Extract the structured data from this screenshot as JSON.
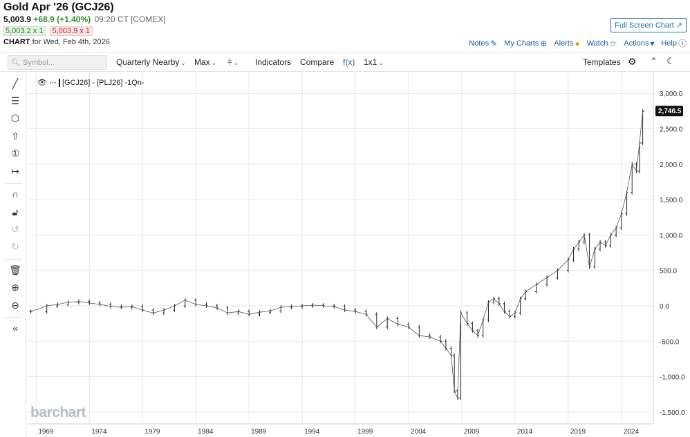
{
  "header": {
    "title": "Gold Apr '26 (GCJ26)",
    "last": "5,003.9",
    "change": "+68.9 (+1.40%)",
    "time": "09:20 CT [COMEX]",
    "bid": "5,003.2 x 1",
    "ask": "5,003.9 x 1",
    "chart_label": "CHART",
    "chart_for": "for Wed, Feb 4th, 2026",
    "full_screen": "Full Screen Chart"
  },
  "top_links": {
    "notes": "Notes",
    "my_charts": "My Charts",
    "alerts": "Alerts",
    "watch": "Watch",
    "actions": "Actions",
    "help": "Help"
  },
  "toolbar": {
    "search_placeholder": "Symbol...",
    "period": "Quarterly Nearby",
    "range": "Max",
    "indicators": "Indicators",
    "compare": "Compare",
    "fx": "f(x)",
    "layout": "1x1",
    "templates": "Templates"
  },
  "side_tools": [
    "line-tool-icon",
    "fib-tool-icon",
    "shape-tool-icon",
    "arrow-tool-icon",
    "number-tool-icon",
    "measure-tool-icon",
    "magnet-icon",
    "lock-icon",
    "undo-icon",
    "redo-icon",
    "trash-icon",
    "zoom-in-icon",
    "zoom-out-icon",
    "collapse-icon"
  ],
  "legend": "[GCJ26] - [PLJ26] -1Qn-",
  "watermark": "barchart",
  "colors": {
    "accent": "#1b6fb5",
    "up": "#2f8b2f",
    "down": "#b03030",
    "last_label_bg": "#111111"
  },
  "chart_data": {
    "type": "line",
    "title": "",
    "xlabel": "",
    "ylabel": "",
    "series": [
      {
        "name": "[GCJ26] - [PLJ26]",
        "x": [
          1968.5,
          1970,
          1971,
          1972,
          1973,
          1974,
          1975,
          1976,
          1977,
          1978,
          1979,
          1980,
          1981,
          1982,
          1983,
          1984,
          1985,
          1986,
          1987,
          1988,
          1989,
          1990,
          1991,
          1992,
          1993,
          1994,
          1995,
          1996,
          1997,
          1998,
          1999,
          2000,
          2001,
          2002,
          2003,
          2004,
          2005,
          2006,
          2007,
          2007.5,
          2008,
          2008.3,
          2008.6,
          2008.9,
          2009.5,
          2010,
          2010.5,
          2011,
          2011.5,
          2012,
          2012.5,
          2013,
          2013.5,
          2014,
          2014.5,
          2015,
          2016,
          2017,
          2018,
          2019,
          2019.5,
          2020,
          2020.5,
          2021,
          2021.5,
          2022,
          2022.5,
          2023,
          2023.5,
          2024,
          2024.5,
          2025,
          2025.4,
          2025.7,
          2026
        ],
        "y": [
          -80,
          0,
          20,
          50,
          60,
          40,
          20,
          -10,
          -20,
          -10,
          -60,
          -100,
          -60,
          0,
          80,
          20,
          0,
          -30,
          -100,
          -80,
          -120,
          -90,
          -70,
          -20,
          -10,
          0,
          10,
          0,
          -10,
          -60,
          -80,
          -120,
          -300,
          -180,
          -260,
          -300,
          -420,
          -440,
          -500,
          -600,
          -700,
          -1200,
          -1300,
          -100,
          -250,
          -350,
          -420,
          -200,
          50,
          100,
          30,
          -80,
          -150,
          -100,
          100,
          200,
          300,
          400,
          500,
          650,
          800,
          900,
          1000,
          550,
          800,
          900,
          850,
          1000,
          1100,
          1300,
          1600,
          2000,
          1900,
          2300,
          2746.5
        ]
      }
    ],
    "x_ticks": [
      "1969",
      "1974",
      "1979",
      "1984",
      "1989",
      "1994",
      "1999",
      "2004",
      "2009",
      "2014",
      "2019",
      "2024"
    ],
    "y_ticks": [
      "3,000.0",
      "2,500.0",
      "2,000.0",
      "1,500.0",
      "1,000.0",
      "500.0",
      "0.0",
      "-500.0",
      "-1,000.0",
      "-1,500.0"
    ],
    "y_tick_values": [
      3000,
      2500,
      2000,
      1500,
      1000,
      500,
      0,
      -500,
      -1000,
      -1500
    ],
    "xlim": [
      1968.2,
      2027
    ],
    "ylim": [
      -1600,
      3100
    ],
    "last_label": "2,746.5",
    "grid": true
  }
}
